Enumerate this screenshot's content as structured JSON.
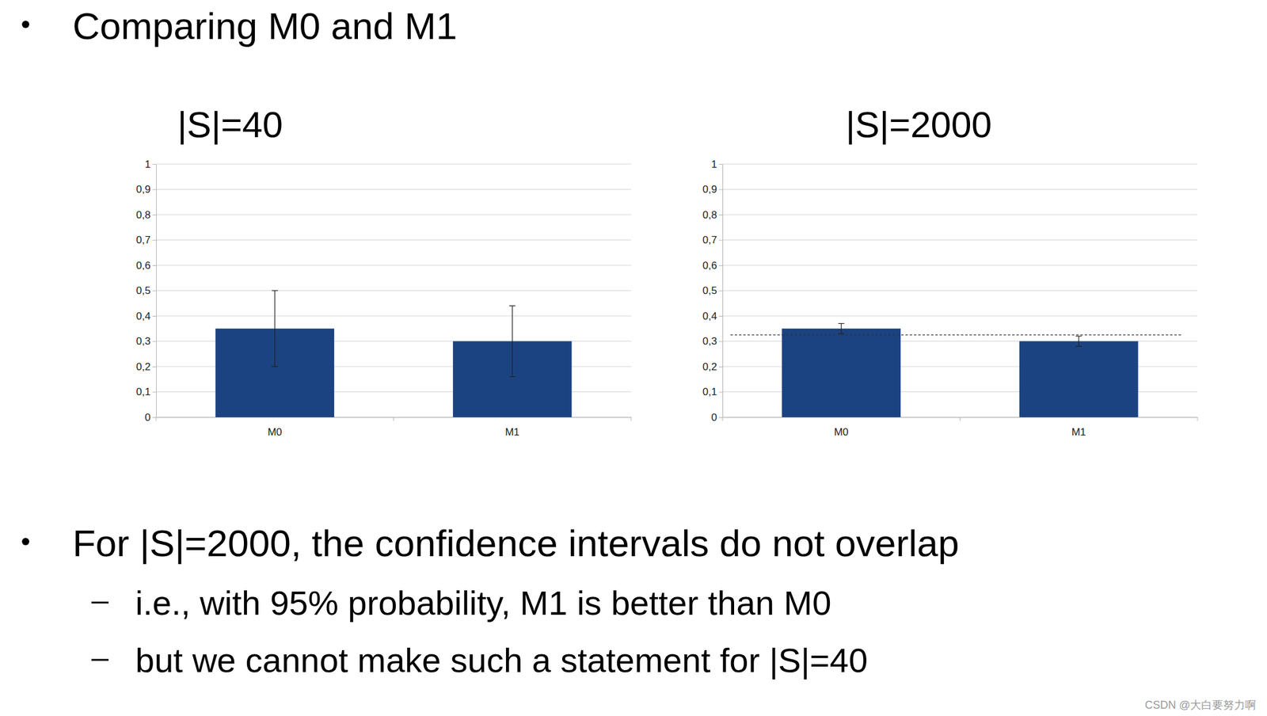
{
  "slide": {
    "title": "Comparing M0 and M1",
    "bullets": [
      {
        "text": "For |S|=2000, the confidence intervals do not overlap",
        "sub": [
          "i.e., with 95% probability, M1 is better than M0",
          "but we cannot make such a statement for |S|=40"
        ]
      }
    ]
  },
  "watermark": "CSDN @大白要努力啊",
  "chart_data": [
    {
      "type": "bar",
      "title": "|S|=40",
      "categories": [
        "M0",
        "M1"
      ],
      "values": [
        0.35,
        0.3
      ],
      "errors": [
        0.15,
        0.14
      ],
      "color": "#1c4381",
      "ylim": [
        0,
        1
      ],
      "yticks": [
        0,
        {
          "value": 0.1,
          "label": "0,1"
        },
        {
          "value": 0.2,
          "label": "0,2"
        },
        {
          "value": 0.3,
          "label": "0,3"
        },
        {
          "value": 0.4,
          "label": "0,4"
        },
        {
          "value": 0.5,
          "label": "0,5"
        },
        {
          "value": 0.6,
          "label": "0,6"
        },
        {
          "value": 0.7,
          "label": "0,7"
        },
        {
          "value": 0.8,
          "label": "0,8"
        },
        {
          "value": 0.9,
          "label": "0,9"
        },
        1
      ],
      "grid": true
    },
    {
      "type": "bar",
      "title": "|S|=2000",
      "categories": [
        "M0",
        "M1"
      ],
      "values": [
        0.35,
        0.3
      ],
      "errors": [
        0.02,
        0.02
      ],
      "reference_line": 0.325,
      "color": "#1c4381",
      "ylim": [
        0,
        1
      ],
      "yticks": [
        0,
        {
          "value": 0.1,
          "label": "0,1"
        },
        {
          "value": 0.2,
          "label": "0,2"
        },
        {
          "value": 0.3,
          "label": "0,3"
        },
        {
          "value": 0.4,
          "label": "0,4"
        },
        {
          "value": 0.5,
          "label": "0,5"
        },
        {
          "value": 0.6,
          "label": "0,6"
        },
        {
          "value": 0.7,
          "label": "0,7"
        },
        {
          "value": 0.8,
          "label": "0,8"
        },
        {
          "value": 0.9,
          "label": "0,9"
        },
        1
      ],
      "grid": true
    }
  ]
}
